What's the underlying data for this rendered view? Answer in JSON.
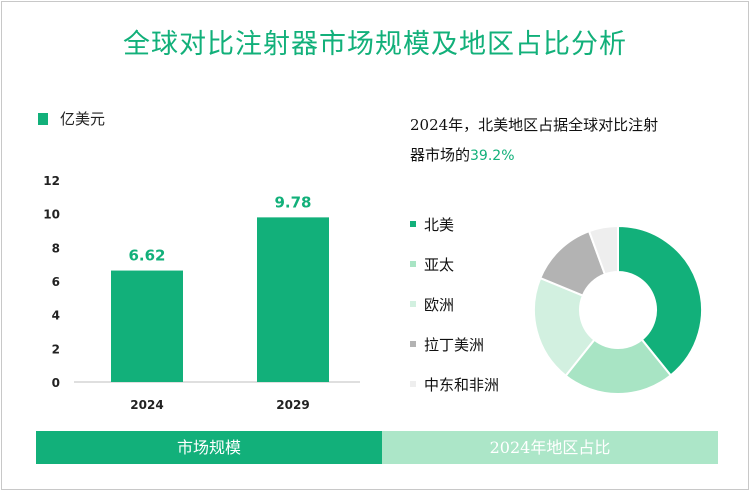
{
  "title": "全球对比注射器市场规模及地区占比分析",
  "colors": {
    "accent": "#12b07a",
    "accent_light": "#ace6c8",
    "north_america": "#12b07a",
    "asia_pacific": "#a8e4c4",
    "europe": "#d2f0e0",
    "latin_america": "#b3b3b3",
    "mea": "#eeeeee"
  },
  "legend_unit": "亿美元",
  "right_text": {
    "line1": "2024年，北美地区占据全球对比注射",
    "line2_prefix": "器市场的",
    "line2_value": "39.2%"
  },
  "footer": {
    "left": "市场规模",
    "right": "2024年地区占比"
  },
  "chart_data": [
    {
      "type": "bar",
      "categories": [
        "2024",
        "2029"
      ],
      "values": [
        6.62,
        9.78
      ],
      "data_labels": [
        "6.62",
        "9.78"
      ],
      "ylabel": "亿美元",
      "ylim": [
        0,
        12
      ],
      "yticks": [
        "0",
        "2",
        "4",
        "6",
        "8",
        "10",
        "12"
      ],
      "grid": false
    },
    {
      "type": "pie",
      "donut": true,
      "labels": [
        "北美",
        "亚太",
        "欧洲",
        "拉丁美洲",
        "中东和非洲"
      ],
      "values": [
        39.2,
        21.5,
        20.5,
        13.2,
        5.6
      ]
    }
  ]
}
